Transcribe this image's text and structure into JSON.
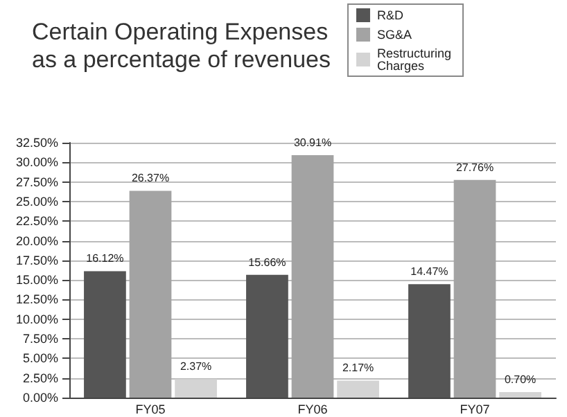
{
  "chart_data": {
    "type": "bar",
    "title": "Certain Operating Expenses\nas a percentage of revenues",
    "categories": [
      "FY05",
      "FY06",
      "FY07"
    ],
    "series": [
      {
        "name": "R&D",
        "color": "#555555",
        "values": [
          16.12,
          15.66,
          14.47
        ],
        "value_labels": [
          "16.12%",
          "15.66%",
          "14.47%"
        ]
      },
      {
        "name": "SG&A",
        "color": "#a3a3a3",
        "values": [
          26.37,
          30.91,
          27.76
        ],
        "value_labels": [
          "26.37%",
          "30.91%",
          "27.76%"
        ]
      },
      {
        "name": "Restructuring Charges",
        "color": "#d4d4d4",
        "values": [
          2.37,
          2.17,
          0.7
        ],
        "value_labels": [
          "2.37%",
          "2.17%",
          "0.70%"
        ]
      }
    ],
    "ylim": [
      0,
      32.5
    ],
    "yticks": [
      {
        "value": 0,
        "label": "0.00%"
      },
      {
        "value": 2.5,
        "label": "2.50%"
      },
      {
        "value": 5,
        "label": "5.00%"
      },
      {
        "value": 7.5,
        "label": "7.50%"
      },
      {
        "value": 10,
        "label": "10.00%"
      },
      {
        "value": 12.5,
        "label": "12.50%"
      },
      {
        "value": 15,
        "label": "15.00%"
      },
      {
        "value": 17.5,
        "label": "17.50%"
      },
      {
        "value": 20,
        "label": "20.00%"
      },
      {
        "value": 22.5,
        "label": "22.50%"
      },
      {
        "value": 25,
        "label": "25.00%"
      },
      {
        "value": 27.5,
        "label": "27.50%"
      },
      {
        "value": 30,
        "label": "30.00%"
      },
      {
        "value": 32.5,
        "label": "32.50%"
      }
    ],
    "grid": "y",
    "legend": "top right"
  }
}
